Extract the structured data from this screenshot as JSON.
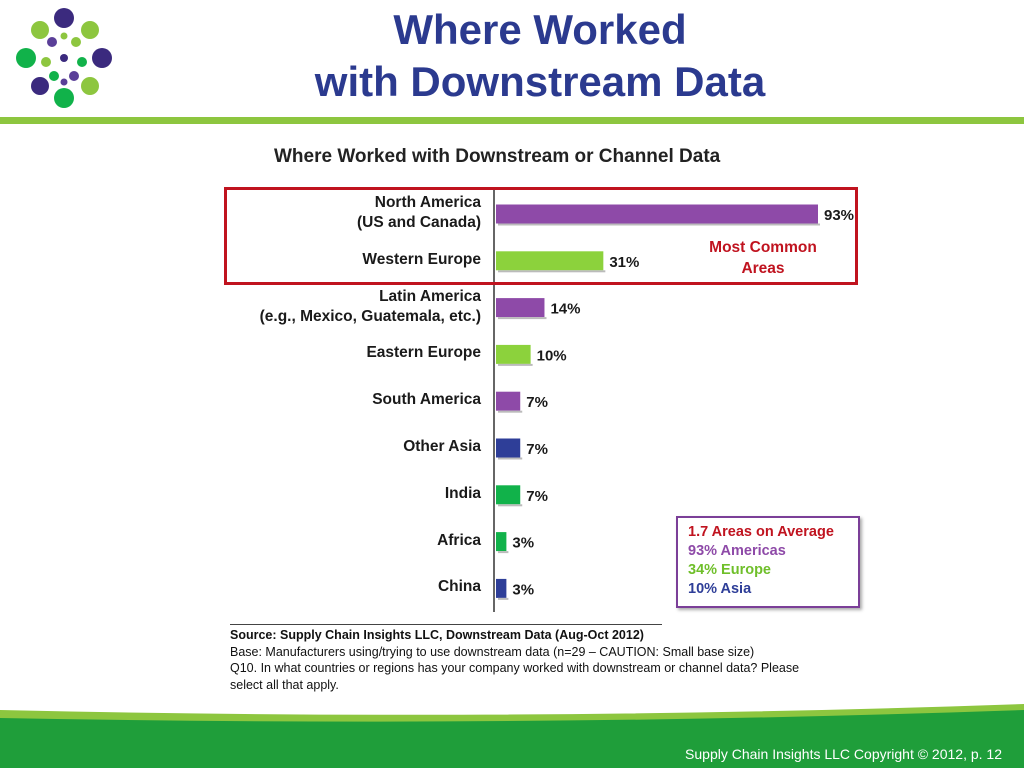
{
  "slide": {
    "title_line1": "Where Worked",
    "title_line2": "with Downstream Data",
    "footer": "Supply Chain Insights LLC Copyright © 2012, p. 12"
  },
  "colors": {
    "purple": "#8e4aa8",
    "green_light": "#8cd23c",
    "green": "#11b24a",
    "blue": "#2e3e98",
    "red": "#c0131f",
    "title_blue": "#2b3a8f",
    "accent_green": "#8dc63f"
  },
  "chart_data": {
    "type": "bar",
    "orientation": "horizontal",
    "title": "Where Worked with Downstream or Channel Data",
    "categories": [
      "North America\n(US and Canada)",
      "Western Europe",
      "Latin America\n(e.g., Mexico, Guatemala, etc.)",
      "Eastern Europe",
      "South America",
      "Other Asia",
      "India",
      "Africa",
      "China"
    ],
    "values": [
      93,
      31,
      14,
      10,
      7,
      7,
      7,
      3,
      3
    ],
    "value_labels": [
      "93%",
      "31%",
      "14%",
      "10%",
      "7%",
      "7%",
      "7%",
      "3%",
      "3%"
    ],
    "bar_colors": [
      "#8e4aa8",
      "#8cd23c",
      "#8e4aa8",
      "#8cd23c",
      "#8e4aa8",
      "#2e3e98",
      "#11b24a",
      "#11b24a",
      "#2e3e98"
    ],
    "xlim": [
      0,
      93
    ],
    "grid": false,
    "highlight_label": "Most Common\nAreas"
  },
  "summary": {
    "line1": "1.7 Areas on Average",
    "line2": "93% Americas",
    "line3": "34% Europe",
    "line4": "10% Asia"
  },
  "source": {
    "line1": "Source:  Supply Chain Insights LLC, Downstream Data (Aug-Oct 2012)",
    "line2": "Base:  Manufacturers using/trying to use downstream data (n=29 – CAUTION: Small base size)",
    "line3": "Q10. In what countries or regions has your company worked with downstream or channel data?  Please select all that apply."
  }
}
